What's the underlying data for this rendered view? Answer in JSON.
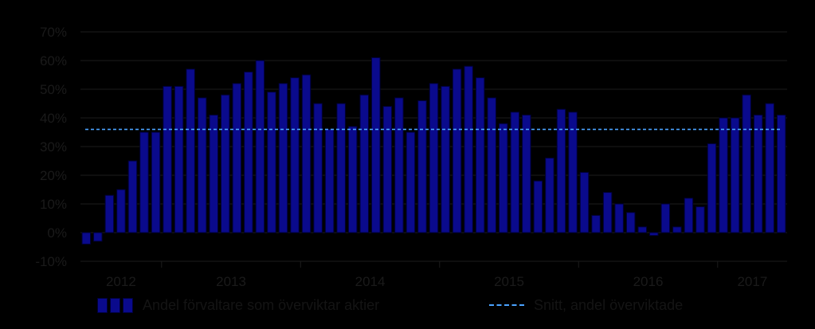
{
  "chart_data": {
    "type": "bar",
    "y_ticks": [
      "70%",
      "60%",
      "50%",
      "40%",
      "30%",
      "20%",
      "10%",
      "0%",
      "-10%"
    ],
    "ylim": [
      -10,
      70
    ],
    "year_labels": [
      "2012",
      "2013",
      "2014",
      "2015",
      "2016",
      "2017"
    ],
    "series": [
      {
        "name": "Andel förvaltare som överviktar aktier",
        "type": "bar",
        "color": "#0a0a8c",
        "values": [
          -4,
          -3,
          13,
          15,
          25,
          35,
          35,
          51,
          51,
          57,
          47,
          41,
          48,
          52,
          56,
          60,
          49,
          52,
          54,
          55,
          45,
          36,
          45,
          37,
          48,
          61,
          44,
          47,
          35,
          46,
          52,
          51,
          57,
          58,
          54,
          47,
          38,
          42,
          41,
          18,
          26,
          43,
          42,
          21,
          6,
          14,
          10,
          7,
          2,
          -1,
          10,
          2,
          12,
          9,
          31,
          40,
          40,
          48,
          41,
          45,
          41
        ]
      },
      {
        "name": "Snitt, andel överviktade",
        "type": "line",
        "style": "dashed",
        "color": "#4aa3ff",
        "value": 36
      }
    ],
    "legend_placement": "bottom",
    "grid": true
  },
  "legend": {
    "bars_label": "Andel förvaltare som överviktar aktier",
    "line_label": "Snitt, andel överviktade"
  }
}
